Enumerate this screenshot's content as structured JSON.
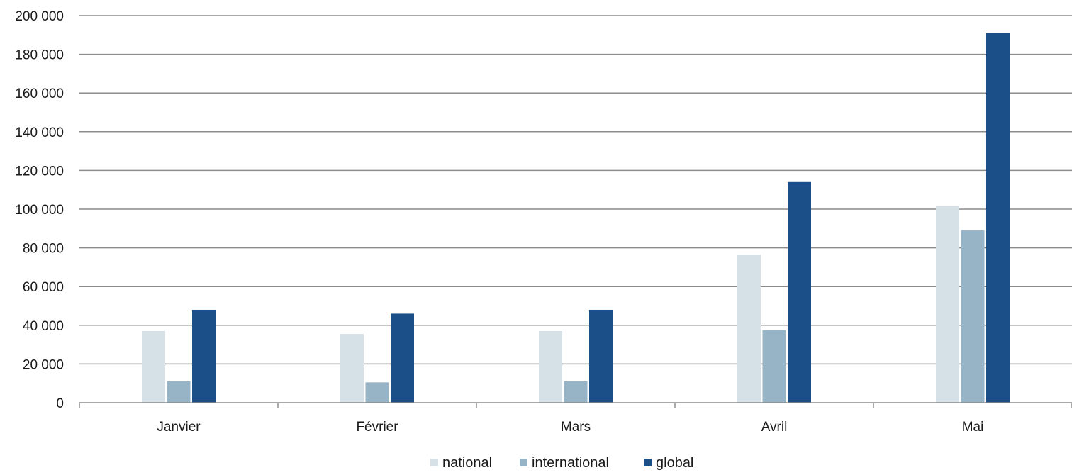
{
  "chart_data": {
    "type": "bar",
    "title": "",
    "xlabel": "",
    "ylabel": "",
    "categories": [
      "Janvier",
      "Février",
      "Mars",
      "Avril",
      "Mai"
    ],
    "series": [
      {
        "name": "national",
        "color": "#d5e0e7",
        "values": [
          37000,
          35500,
          37000,
          76500,
          101500
        ]
      },
      {
        "name": "international",
        "color": "#97b4c6",
        "values": [
          11000,
          10500,
          11000,
          37500,
          89000
        ]
      },
      {
        "name": "global",
        "color": "#1b4f87",
        "values": [
          48000,
          46000,
          48000,
          114000,
          191000
        ]
      }
    ],
    "ylim": [
      0,
      200000
    ],
    "yticks": [
      0,
      20000,
      40000,
      60000,
      80000,
      100000,
      120000,
      140000,
      160000,
      180000,
      200000
    ],
    "ytick_labels": [
      "0",
      "20 000",
      "40 000",
      "60 000",
      "80 000",
      "100 000",
      "120 000",
      "140 000",
      "160 000",
      "180 000",
      "200 000"
    ],
    "grid": true,
    "legend_position": "bottom-center"
  }
}
